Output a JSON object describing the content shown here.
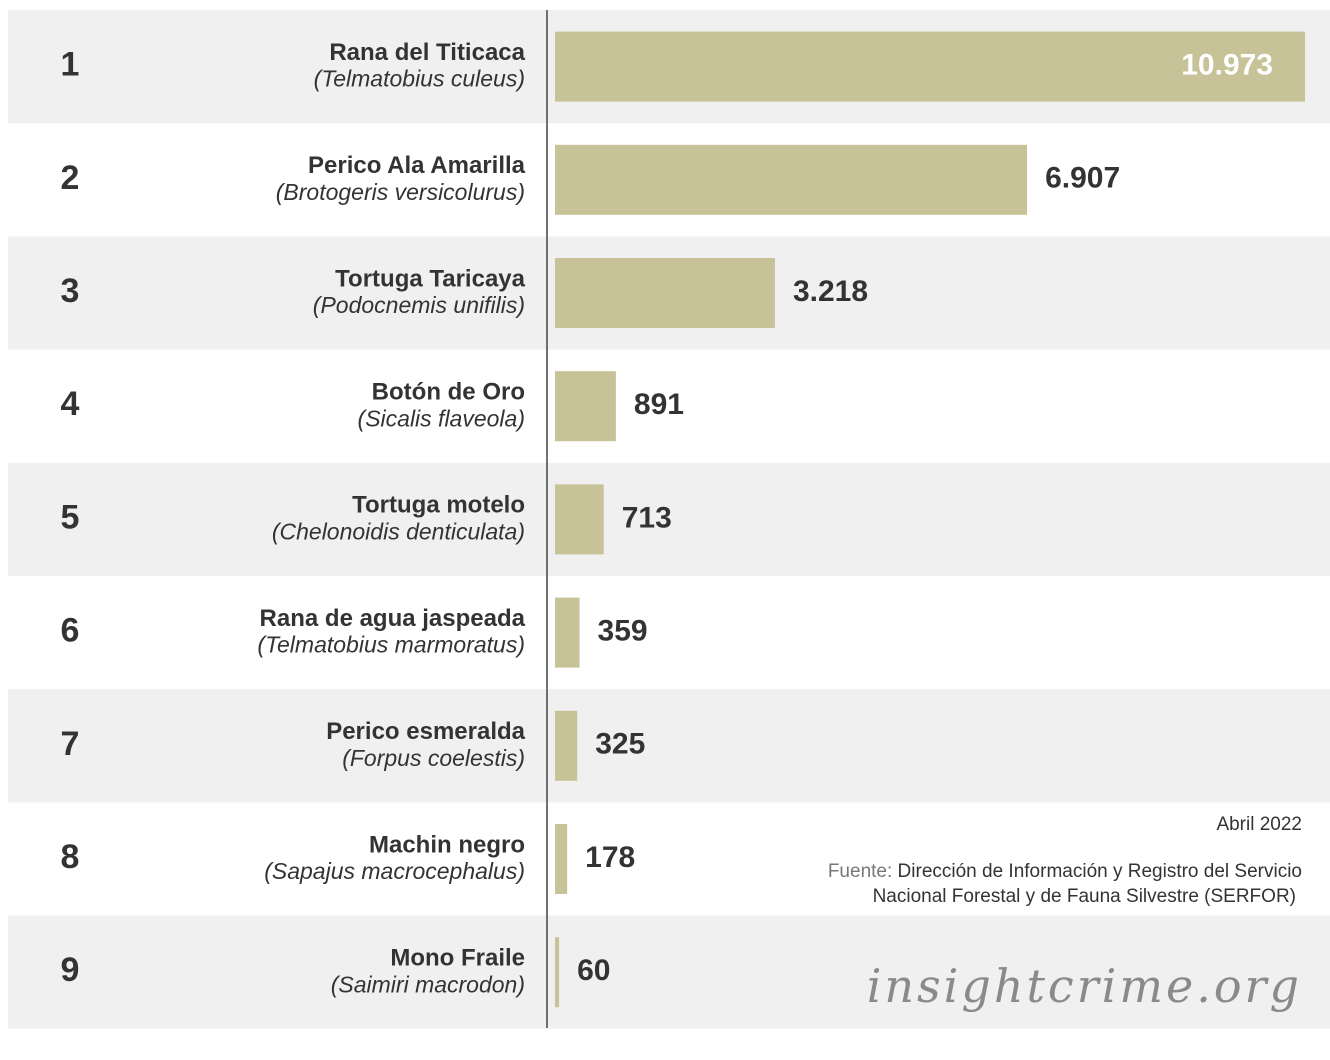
{
  "chart_data": {
    "type": "bar",
    "orientation": "horizontal",
    "ranks": [
      "1",
      "2",
      "3",
      "4",
      "5",
      "6",
      "7",
      "8",
      "9"
    ],
    "categories": [
      "Rana del Titicaca",
      "Perico Ala Amarilla",
      "Tortuga Taricaya",
      "Botón de Oro",
      "Tortuga motelo",
      "Rana de agua jaspeada",
      "Perico esmeralda",
      "Machin negro",
      "Mono Fraile"
    ],
    "scientific_names": [
      "(Telmatobius culeus)",
      "(Brotogeris versicolurus)",
      "(Podocnemis unifilis)",
      "(Sicalis flaveola)",
      "(Chelonoidis denticulata)",
      "(Telmatobius marmoratus)",
      "(Forpus coelestis)",
      "(Sapajus macrocephalus)",
      "(Saimiri macrodon)"
    ],
    "values": [
      10973,
      6907,
      3218,
      891,
      713,
      359,
      325,
      178,
      60
    ],
    "value_labels": [
      "10.973",
      "6.907",
      "3.218",
      "891",
      "713",
      "359",
      "325",
      "178",
      "60"
    ],
    "color": "#c7c298",
    "xlim": [
      0,
      10973
    ],
    "date": "Abril 2022",
    "source_label": "Fuente:",
    "source_lines": [
      "Dirección de Información y Registro del Servicio",
      "Nacional Forestal y de Fauna Silvestre (SERFOR)"
    ],
    "watermark": "insightcrime.org"
  }
}
